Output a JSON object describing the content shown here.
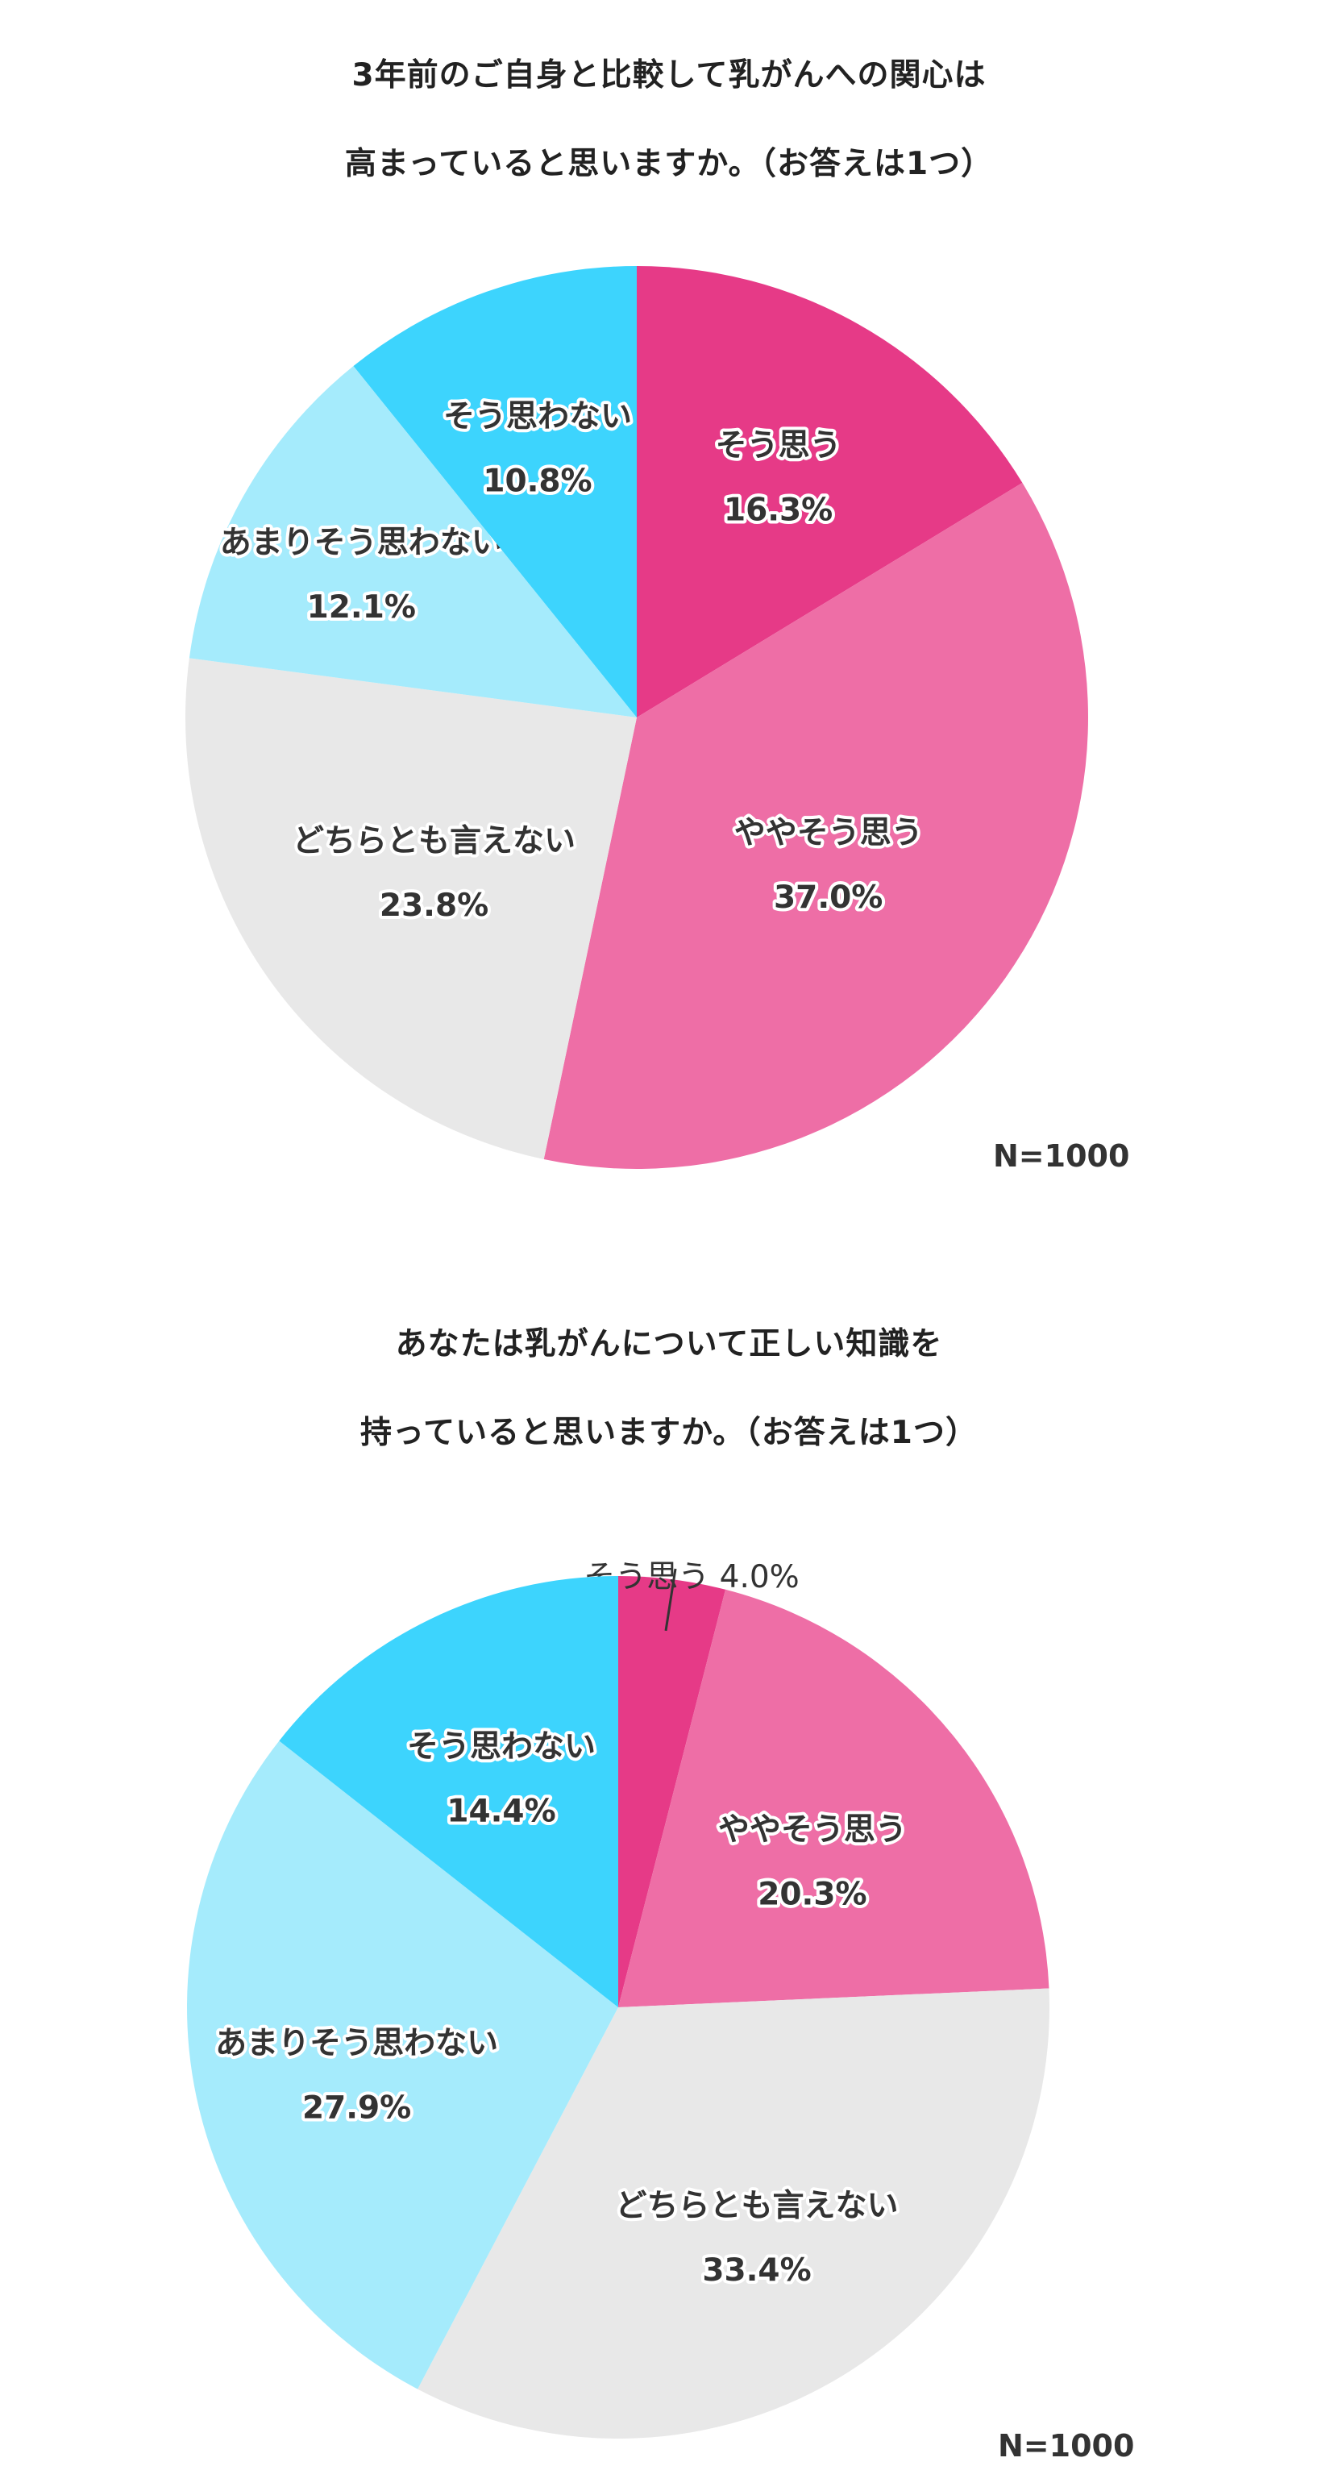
{
  "chart_data": [
    {
      "type": "pie",
      "title_lines": [
        "3年前のご自身と比較して乳がんへの関心は",
        "高まっていると思いますか。（お答えは1つ）"
      ],
      "slices": [
        {
          "label": "そう思う",
          "value": 16.3,
          "value_label": "16.3%",
          "color": "#E63A87"
        },
        {
          "label": "ややそう思う",
          "value": 37.0,
          "value_label": "37.0%",
          "color": "#EE6EA6"
        },
        {
          "label": "どちらとも言えない",
          "value": 23.8,
          "value_label": "23.8%",
          "color": "#E8E8E8"
        },
        {
          "label": "あまりそう思わない",
          "value": 12.1,
          "value_label": "12.1%",
          "color": "#A5EBFC"
        },
        {
          "label": "そう思わない",
          "value": 10.8,
          "value_label": "10.8%",
          "color": "#3DD4FD"
        }
      ],
      "n_label": "N=1000"
    },
    {
      "type": "pie",
      "title_lines": [
        "あなたは乳がんについて正しい知識を",
        "持っていると思いますか。（お答えは1つ）"
      ],
      "slices": [
        {
          "label": "そう思う",
          "value": 4.0,
          "value_label": "4.0%",
          "color": "#E63A87"
        },
        {
          "label": "ややそう思う",
          "value": 20.3,
          "value_label": "20.3%",
          "color": "#EE6EA6"
        },
        {
          "label": "どちらとも言えない",
          "value": 33.4,
          "value_label": "33.4%",
          "color": "#E8E8E8"
        },
        {
          "label": "あまりそう思わない",
          "value": 27.9,
          "value_label": "27.9%",
          "color": "#A5EBFC"
        },
        {
          "label": "そう思わない",
          "value": 14.4,
          "value_label": "14.4%",
          "color": "#3DD4FD"
        }
      ],
      "n_label": "N=1000"
    }
  ]
}
